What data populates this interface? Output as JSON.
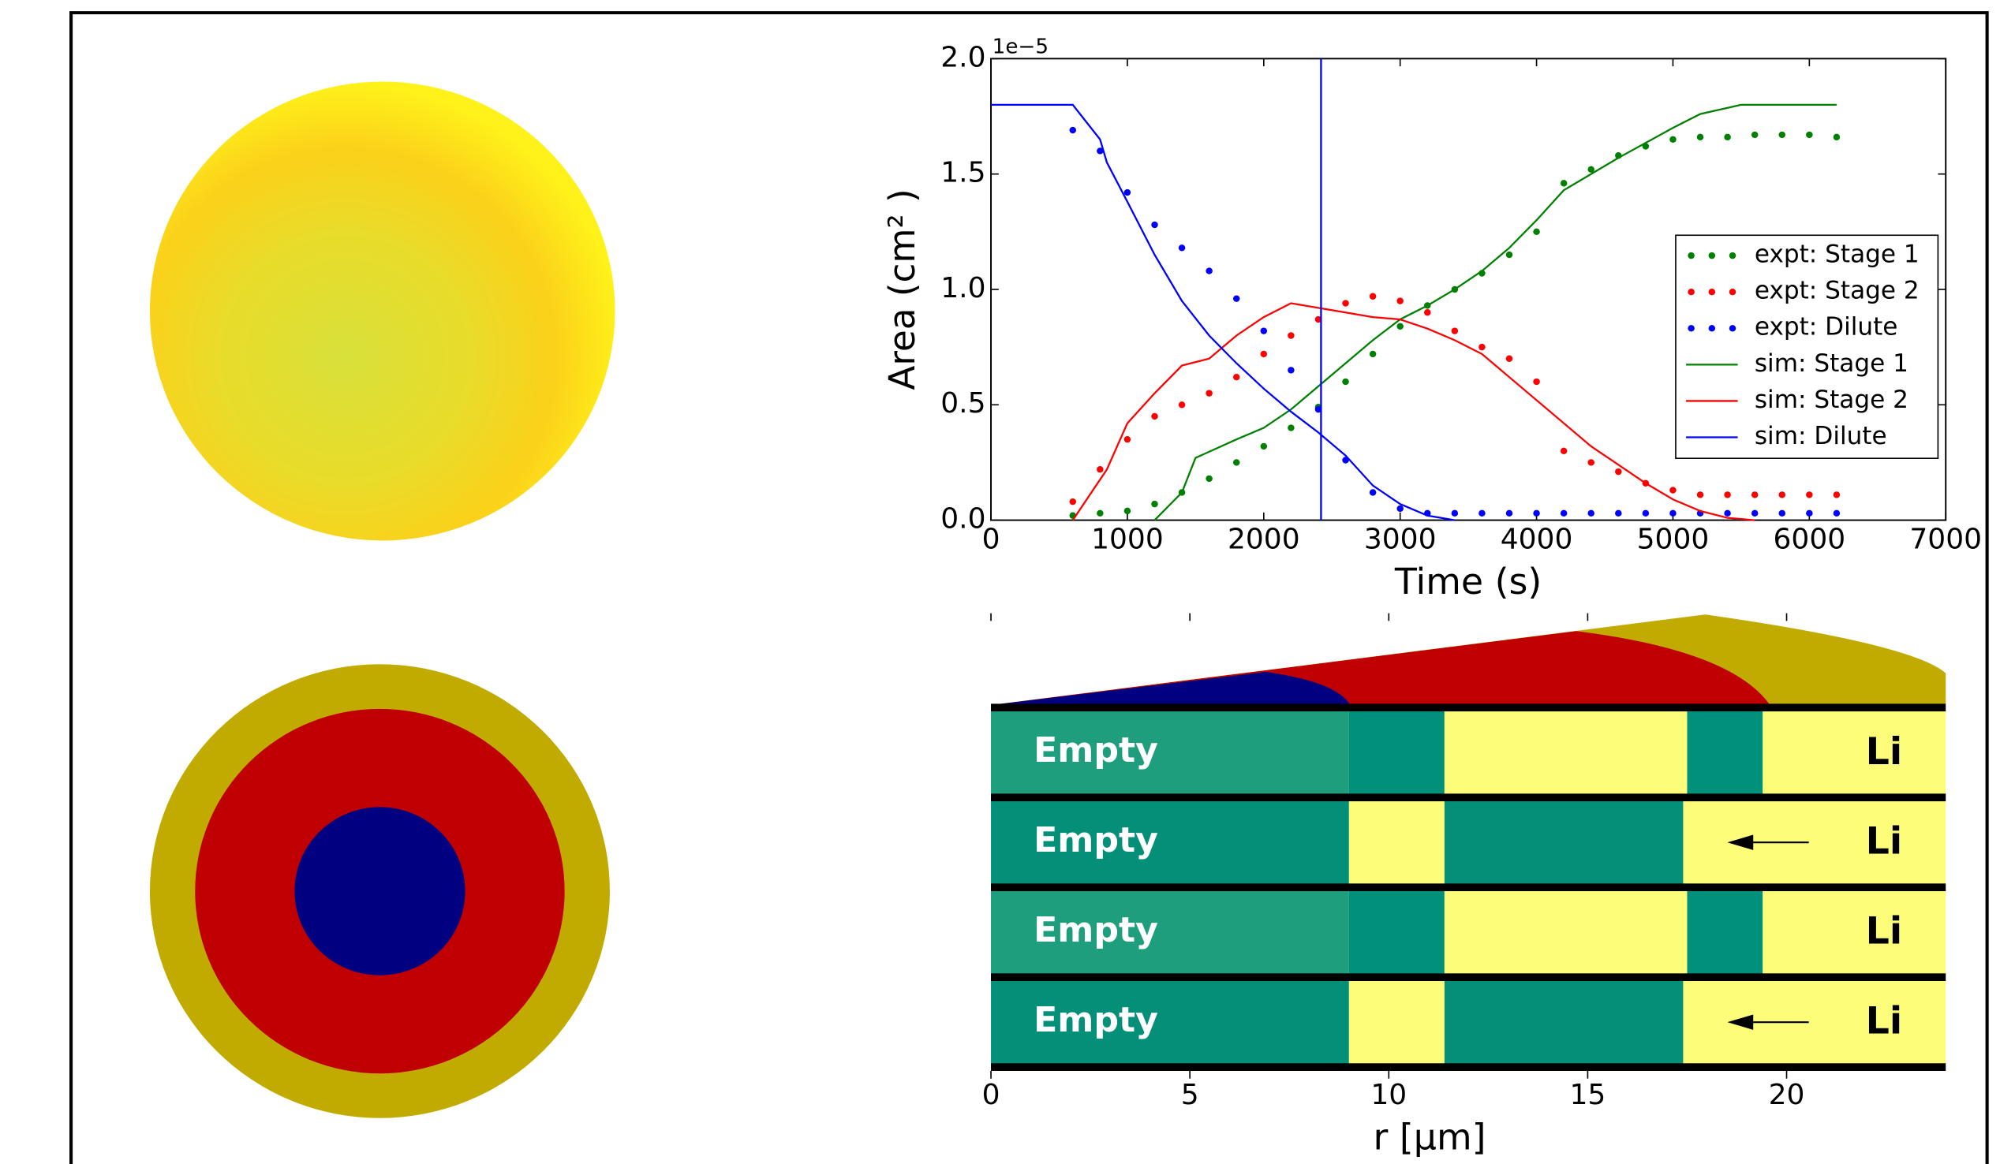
{
  "chart_data": [
    {
      "type": "line",
      "xlabel": "Time (s)",
      "ylabel": "Area (cm² )",
      "y_offset_label": "1e−5",
      "xlim": [
        0,
        7000
      ],
      "xticks": [
        0,
        1000,
        2000,
        3000,
        4000,
        5000,
        6000,
        7000
      ],
      "ylim": [
        0,
        2e-05
      ],
      "yticks": [
        {
          "value": 0,
          "label": "0.0"
        },
        {
          "value": 5e-06,
          "label": "0.5"
        },
        {
          "value": 1e-05,
          "label": "1.0"
        },
        {
          "value": 1.5e-05,
          "label": "1.5"
        },
        {
          "value": 2e-05,
          "label": "2.0"
        }
      ],
      "vline": 2420,
      "vline_color": "#0000ff",
      "legend": "center right",
      "series": [
        {
          "name": "expt: Stage 1",
          "color": "#008000",
          "style": "dots",
          "x": [
            600,
            800,
            1000,
            1200,
            1400,
            1600,
            1800,
            2000,
            2200,
            2400,
            2600,
            2800,
            3000,
            3200,
            3400,
            3600,
            3800,
            4000,
            4200,
            4400,
            4600,
            4800,
            5000,
            5200,
            5400,
            5600,
            5800,
            6000,
            6200
          ],
          "values": [
            2e-07,
            3e-07,
            4e-07,
            7e-07,
            1.2e-06,
            1.8e-06,
            2.5e-06,
            3.2e-06,
            4e-06,
            4.9e-06,
            6e-06,
            7.2e-06,
            8.4e-06,
            9.3e-06,
            1e-05,
            1.07e-05,
            1.15e-05,
            1.25e-05,
            1.46e-05,
            1.52e-05,
            1.58e-05,
            1.62e-05,
            1.65e-05,
            1.66e-05,
            1.66e-05,
            1.67e-05,
            1.67e-05,
            1.67e-05,
            1.66e-05
          ]
        },
        {
          "name": "expt: Stage 2",
          "color": "#ff0000",
          "style": "dots",
          "x": [
            600,
            800,
            1000,
            1200,
            1400,
            1600,
            1800,
            2000,
            2200,
            2400,
            2600,
            2800,
            3000,
            3200,
            3400,
            3600,
            3800,
            4000,
            4200,
            4400,
            4600,
            4800,
            5000,
            5200,
            5400,
            5600,
            5800,
            6000,
            6200
          ],
          "values": [
            8e-07,
            2.2e-06,
            3.5e-06,
            4.5e-06,
            5e-06,
            5.5e-06,
            6.2e-06,
            7.2e-06,
            8e-06,
            8.7e-06,
            9.4e-06,
            9.7e-06,
            9.5e-06,
            9e-06,
            8.2e-06,
            7.5e-06,
            7e-06,
            6e-06,
            3e-06,
            2.5e-06,
            2.1e-06,
            1.6e-06,
            1.3e-06,
            1.1e-06,
            1.1e-06,
            1.1e-06,
            1.1e-06,
            1.1e-06,
            1.1e-06
          ]
        },
        {
          "name": "expt: Dilute",
          "color": "#0000ff",
          "style": "dots",
          "x": [
            600,
            800,
            1000,
            1200,
            1400,
            1600,
            1800,
            2000,
            2200,
            2400,
            2600,
            2800,
            3000,
            3200,
            3400,
            3600,
            3800,
            4000,
            4200,
            4400,
            4600,
            4800,
            5000,
            5200,
            5400,
            5600,
            5800,
            6000,
            6200
          ],
          "values": [
            1.69e-05,
            1.6e-05,
            1.42e-05,
            1.28e-05,
            1.18e-05,
            1.08e-05,
            9.6e-06,
            8.2e-06,
            6.5e-06,
            4.8e-06,
            2.6e-06,
            1.2e-06,
            5e-07,
            3e-07,
            3e-07,
            3e-07,
            3e-07,
            3e-07,
            3e-07,
            3e-07,
            3e-07,
            3e-07,
            3e-07,
            3e-07,
            3e-07,
            3e-07,
            3e-07,
            3e-07,
            3e-07
          ]
        },
        {
          "name": "sim: Stage 1",
          "color": "#008000",
          "style": "line",
          "x": [
            1200,
            1400,
            1500,
            1800,
            2000,
            2200,
            2400,
            2600,
            2800,
            3000,
            3200,
            3400,
            3600,
            3800,
            4000,
            4200,
            4600,
            5000,
            5200,
            5500,
            6200
          ],
          "values": [
            0,
            1.2e-06,
            2.7e-06,
            3.5e-06,
            4e-06,
            4.8e-06,
            5.8e-06,
            6.8e-06,
            7.8e-06,
            8.7e-06,
            9.3e-06,
            1e-05,
            1.08e-05,
            1.18e-05,
            1.3e-05,
            1.43e-05,
            1.57e-05,
            1.7e-05,
            1.76e-05,
            1.8e-05,
            1.8e-05
          ]
        },
        {
          "name": "sim: Stage 2",
          "color": "#ff0000",
          "style": "line",
          "x": [
            600,
            850,
            1000,
            1200,
            1400,
            1600,
            1800,
            2000,
            2200,
            2400,
            2600,
            2800,
            3000,
            3200,
            3400,
            3600,
            3800,
            4000,
            4200,
            4400,
            4600,
            4800,
            5000,
            5200,
            5400,
            5600
          ],
          "values": [
            0,
            2.2e-06,
            4.2e-06,
            5.5e-06,
            6.7e-06,
            7e-06,
            8e-06,
            8.8e-06,
            9.4e-06,
            9.2e-06,
            9e-06,
            8.8e-06,
            8.7e-06,
            8.3e-06,
            7.8e-06,
            7.2e-06,
            6.2e-06,
            5.2e-06,
            4.2e-06,
            3.2e-06,
            2.4e-06,
            1.6e-06,
            9e-07,
            4e-07,
            1e-07,
            0
          ]
        },
        {
          "name": "sim: Dilute",
          "color": "#0000ff",
          "style": "line",
          "x": [
            0,
            600,
            800,
            850,
            1000,
            1200,
            1400,
            1600,
            1800,
            2000,
            2200,
            2400,
            2600,
            2800,
            3000,
            3200,
            3400
          ],
          "values": [
            1.8e-05,
            1.8e-05,
            1.65e-05,
            1.55e-05,
            1.38e-05,
            1.15e-05,
            9.5e-06,
            8e-06,
            6.8e-06,
            5.7e-06,
            4.7e-06,
            3.8e-06,
            2.8e-06,
            1.5e-06,
            7e-07,
            2e-07,
            0
          ]
        }
      ]
    },
    {
      "type": "strip",
      "xlabel": "r [μm]",
      "xlim": [
        0,
        24
      ],
      "xticks": [
        0,
        5,
        10,
        15,
        20
      ],
      "rows": [
        {
          "left_label": "Empty",
          "right_label": "Li",
          "arrow": false,
          "segments": [
            {
              "start": 0,
              "end": 9,
              "color": "#1f9e7e"
            },
            {
              "start": 9,
              "end": 11.4,
              "color": "#019079"
            },
            {
              "start": 11.4,
              "end": 17.5,
              "color": "#fdfd7a"
            },
            {
              "start": 17.5,
              "end": 19.4,
              "color": "#019079"
            },
            {
              "start": 19.4,
              "end": 24,
              "color": "#fdfd7a"
            }
          ]
        },
        {
          "left_label": "Empty",
          "right_label": "Li",
          "arrow": true,
          "segments": [
            {
              "start": 0,
              "end": 9,
              "color": "#049078"
            },
            {
              "start": 9,
              "end": 11.4,
              "color": "#fdfd7a"
            },
            {
              "start": 11.4,
              "end": 17.4,
              "color": "#049078"
            },
            {
              "start": 17.4,
              "end": 24,
              "color": "#fdfd7a"
            }
          ]
        },
        {
          "left_label": "Empty",
          "right_label": "Li",
          "arrow": false,
          "segments": [
            {
              "start": 0,
              "end": 9,
              "color": "#1f9e7e"
            },
            {
              "start": 9,
              "end": 11.4,
              "color": "#019079"
            },
            {
              "start": 11.4,
              "end": 17.5,
              "color": "#fdfd7a"
            },
            {
              "start": 17.5,
              "end": 19.4,
              "color": "#019079"
            },
            {
              "start": 19.4,
              "end": 24,
              "color": "#fdfd7a"
            }
          ]
        },
        {
          "left_label": "Empty",
          "right_label": "Li",
          "arrow": true,
          "segments": [
            {
              "start": 0,
              "end": 9,
              "color": "#049078"
            },
            {
              "start": 9,
              "end": 11.4,
              "color": "#fdfd7a"
            },
            {
              "start": 11.4,
              "end": 17.4,
              "color": "#049078"
            },
            {
              "start": 17.4,
              "end": 24,
              "color": "#fdfd7a"
            }
          ]
        }
      ]
    }
  ]
}
